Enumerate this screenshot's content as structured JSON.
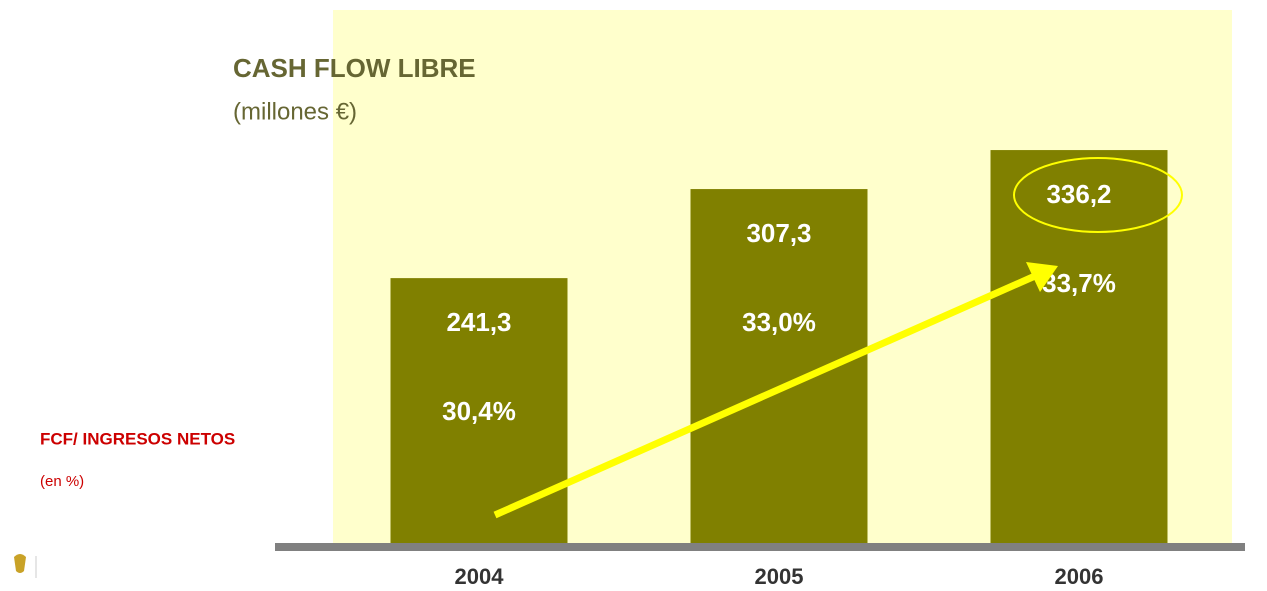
{
  "chart_data": {
    "type": "bar",
    "title": "CASH FLOW LIBRE",
    "subtitle": "(millones €)",
    "annotations": [
      "FCF/ INGRESOS NETOS",
      "(en %)"
    ],
    "categories": [
      "2004",
      "2005",
      "2006"
    ],
    "values": [
      241.3,
      307.3,
      336.2
    ],
    "value_labels": [
      "241,3",
      "307,3",
      "336,2"
    ],
    "ratios": [
      30.4,
      33.0,
      33.7
    ],
    "ratio_labels": [
      "30,4%",
      "33,0%",
      "33,7%"
    ],
    "color": "#808000",
    "ylim": [
      45,
      440
    ]
  }
}
